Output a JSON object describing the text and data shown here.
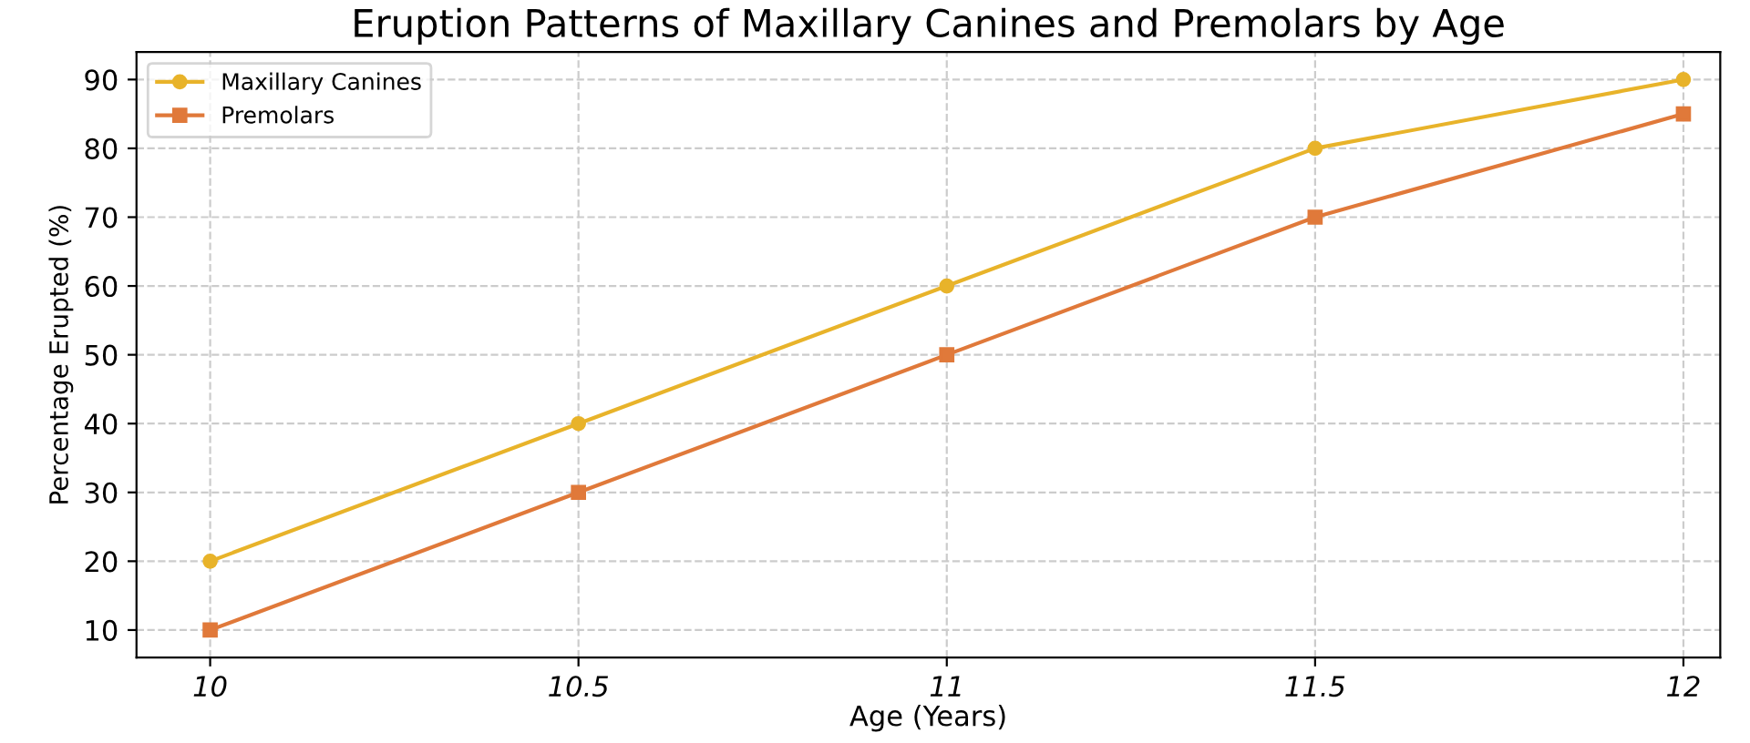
{
  "chart_data": {
    "type": "line",
    "title": "Eruption Patterns of Maxillary Canines and Premolars by Age",
    "xlabel": "Age (Years)",
    "ylabel": "Percentage Erupted (%)",
    "x": [
      10,
      10.5,
      11,
      11.5,
      12
    ],
    "series": [
      {
        "name": "Maxillary Canines",
        "color": "#e8b32a",
        "marker": "circle",
        "values": [
          20,
          40,
          60,
          80,
          90
        ]
      },
      {
        "name": "Premolars",
        "color": "#e0793a",
        "marker": "square",
        "values": [
          10,
          30,
          50,
          70,
          85
        ]
      }
    ],
    "xlim": [
      9.9,
      12.05
    ],
    "xticks": [
      10,
      10.5,
      11,
      11.5,
      12
    ],
    "ylim": [
      6,
      94
    ],
    "yticks": [
      10,
      20,
      30,
      40,
      50,
      60,
      70,
      80,
      90
    ],
    "grid": true,
    "legend": "top left",
    "line_style": "solid"
  }
}
